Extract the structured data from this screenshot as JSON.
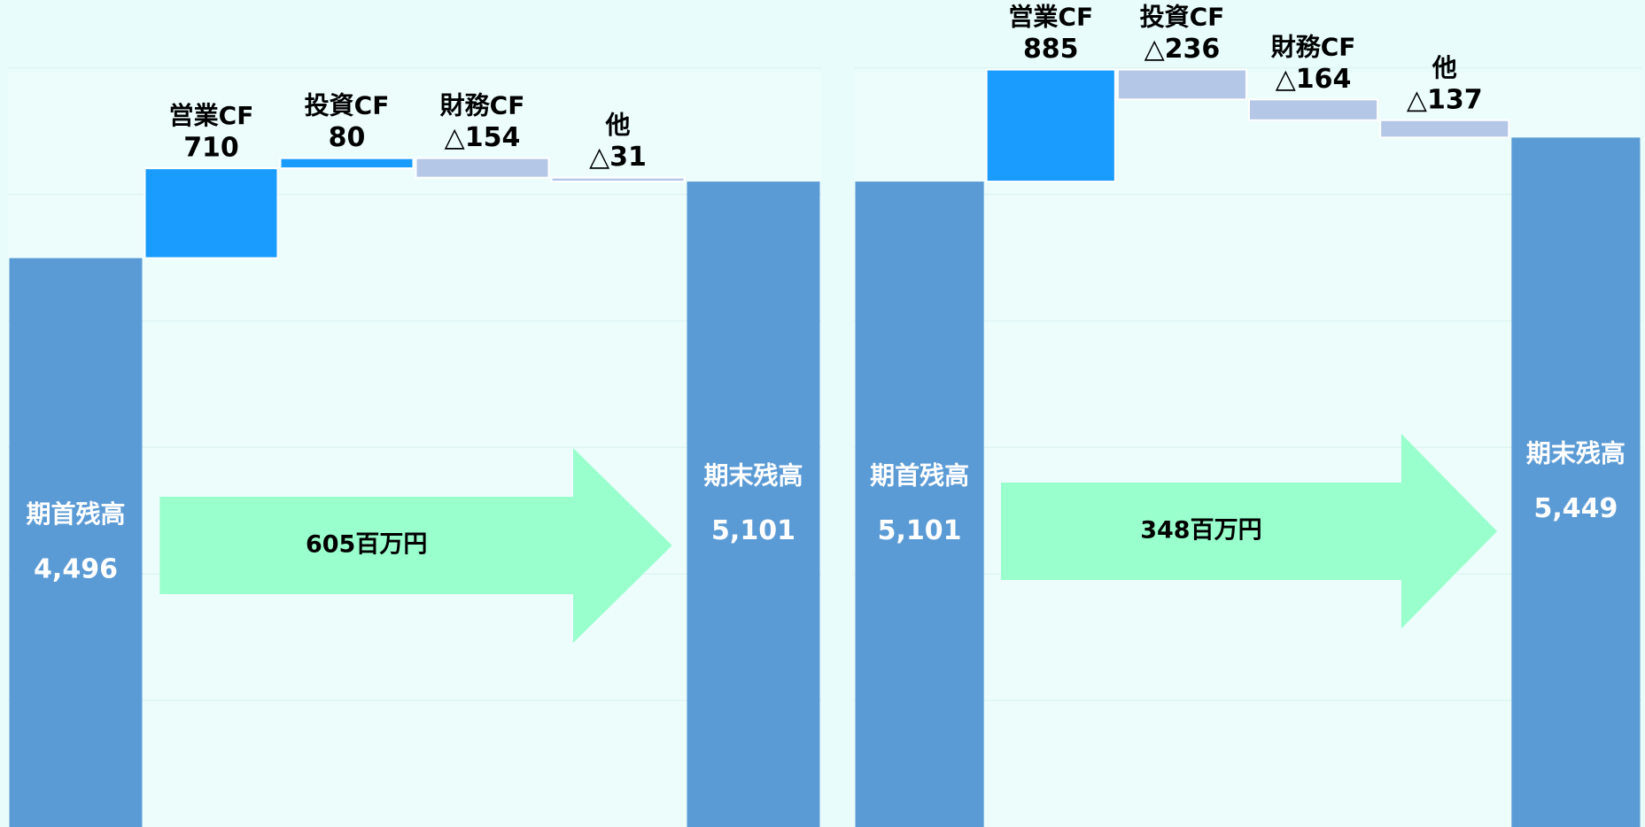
{
  "chart_data": [
    {
      "type": "waterfall",
      "categories": [
        "期首残高",
        "営業CF",
        "投資CF",
        "財務CF",
        "他",
        "期末残高"
      ],
      "values": [
        4496,
        710,
        80,
        -154,
        -31,
        5101
      ],
      "value_labels": [
        "4,496",
        "710",
        "80",
        "△154",
        "△31",
        "5,101"
      ],
      "colors": {
        "total": "#5b9bd5",
        "increase": "#1a9cff",
        "decrease": "#b4c7e7"
      },
      "annotation": "605百万円",
      "annotation_color": "#99ffcc",
      "ylim": [
        0,
        6536
      ],
      "yticks": [
        1000,
        2000,
        3000,
        4000,
        5000,
        6000
      ],
      "grid": true
    },
    {
      "type": "waterfall",
      "categories": [
        "期首残高",
        "営業CF",
        "投資CF",
        "財務CF",
        "他",
        "期末残高"
      ],
      "values": [
        5101,
        885,
        -236,
        -164,
        -137,
        5449
      ],
      "value_labels": [
        "5,101",
        "885",
        "△236",
        "△164",
        "△137",
        "5,449"
      ],
      "colors": {
        "total": "#5b9bd5",
        "increase": "#1a9cff",
        "decrease": "#b4c7e7"
      },
      "annotation": "348百万円",
      "annotation_color": "#99ffcc",
      "ylim": [
        0,
        6536
      ],
      "yticks": [
        1000,
        2000,
        3000,
        4000,
        5000,
        6000
      ],
      "grid": true
    }
  ]
}
